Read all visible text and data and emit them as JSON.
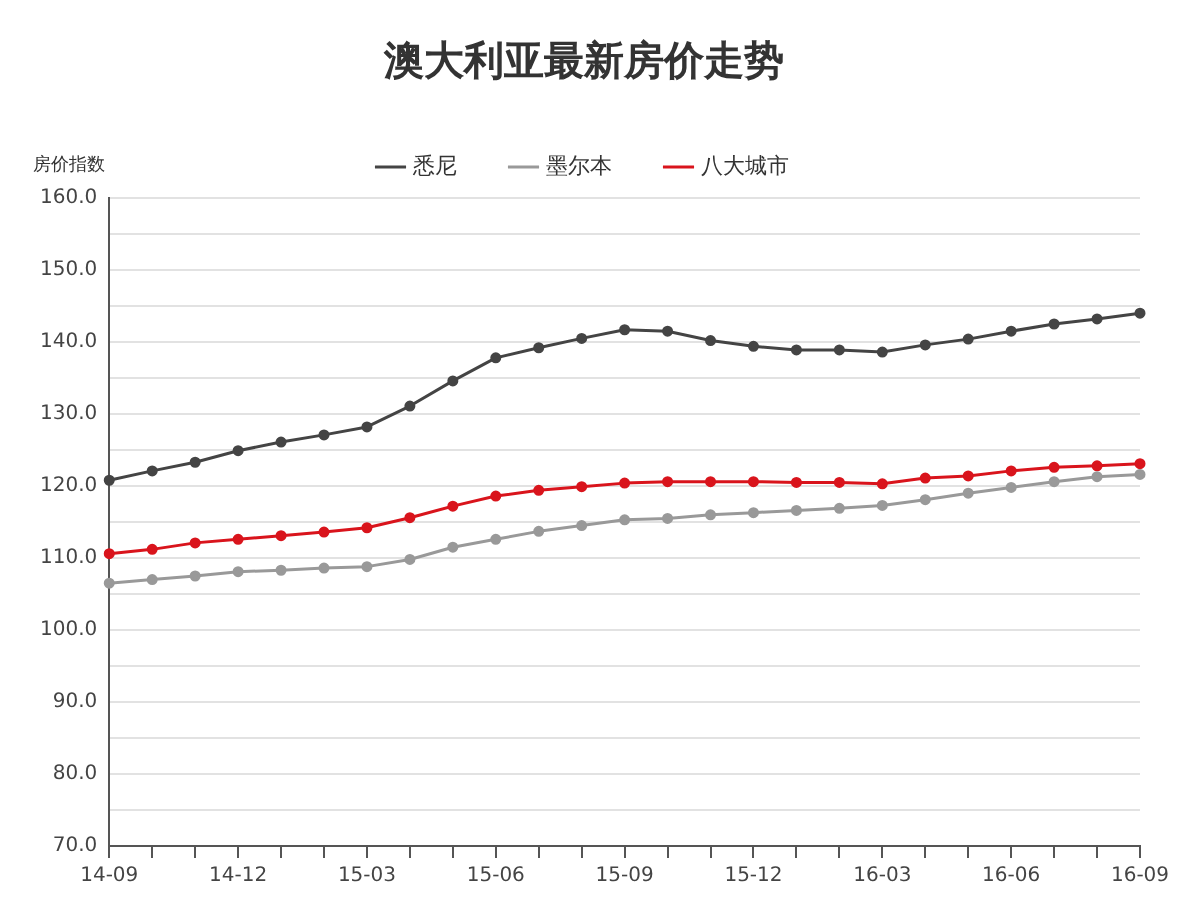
{
  "chart_data": {
    "type": "line",
    "title": "澳大利亚最新房价走势",
    "ylabel": "房价指数",
    "categories": [
      "14-09",
      null,
      null,
      "14-12",
      null,
      null,
      "15-03",
      null,
      null,
      "15-06",
      null,
      null,
      "15-09",
      null,
      null,
      "15-12",
      null,
      null,
      "16-03",
      null,
      null,
      "16-06",
      null,
      null,
      "16-09"
    ],
    "series": [
      {
        "name": "悉尼",
        "color": "#444444",
        "values": [
          120.8,
          122.1,
          123.3,
          124.9,
          126.1,
          127.1,
          128.2,
          131.1,
          134.6,
          137.8,
          139.2,
          140.5,
          141.7,
          141.5,
          140.2,
          139.4,
          138.9,
          138.9,
          138.6,
          139.6,
          140.4,
          141.5,
          142.5,
          143.2,
          144.0
        ]
      },
      {
        "name": "墨尔本",
        "color": "#999999",
        "values": [
          106.5,
          107.0,
          107.5,
          108.1,
          108.3,
          108.6,
          108.8,
          109.8,
          111.5,
          112.6,
          113.7,
          114.5,
          115.3,
          115.5,
          116.0,
          116.3,
          116.6,
          116.9,
          117.3,
          118.1,
          119.0,
          119.8,
          120.6,
          121.3,
          121.6
        ]
      },
      {
        "name": "八大城市",
        "color": "#d9141c",
        "values": [
          110.6,
          111.2,
          112.1,
          112.6,
          113.1,
          113.6,
          114.2,
          115.6,
          117.2,
          118.6,
          119.4,
          119.9,
          120.4,
          120.6,
          120.6,
          120.6,
          120.5,
          120.5,
          120.3,
          121.1,
          121.4,
          122.1,
          122.6,
          122.8,
          123.1
        ]
      }
    ],
    "ylim": [
      70,
      160
    ],
    "yticks": [
      {
        "value": 70,
        "label": "70.0"
      },
      {
        "value": 75,
        "label": null
      },
      {
        "value": 80,
        "label": "80.0"
      },
      {
        "value": 85,
        "label": null
      },
      {
        "value": 90,
        "label": "90.0"
      },
      {
        "value": 95,
        "label": null
      },
      {
        "value": 100,
        "label": "100.0"
      },
      {
        "value": 105,
        "label": null
      },
      {
        "value": 110,
        "label": "110.0"
      },
      {
        "value": 115,
        "label": null
      },
      {
        "value": 120,
        "label": "120.0"
      },
      {
        "value": 125,
        "label": null
      },
      {
        "value": 130,
        "label": "130.0"
      },
      {
        "value": 135,
        "label": null
      },
      {
        "value": 140,
        "label": "140.0"
      },
      {
        "value": 145,
        "label": null
      },
      {
        "value": 150,
        "label": "150.0"
      },
      {
        "value": 155,
        "label": null
      },
      {
        "value": 160,
        "label": "160.0"
      }
    ],
    "grid": "y",
    "legend": "top",
    "marker": "circle",
    "line_style": "solid"
  }
}
